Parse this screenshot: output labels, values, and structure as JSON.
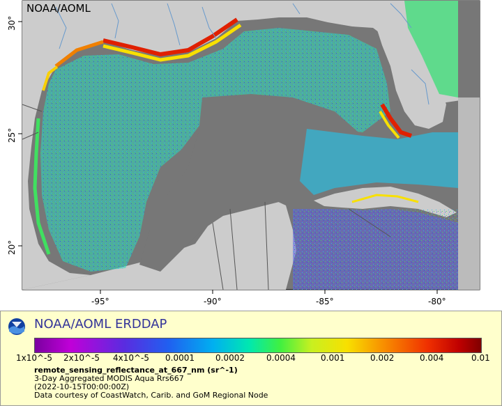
{
  "map": {
    "title": "NOAA/AOML",
    "lon_labels": [
      "-95°",
      "-90°",
      "-85°",
      "-80°"
    ],
    "lat_labels": [
      "30°",
      "25°",
      "20°"
    ],
    "colors": {
      "land": "#cccccc",
      "nodata": "#777777",
      "rivers": "#6699cc",
      "borders": "#555555"
    }
  },
  "legend": {
    "title": "NOAA/AOML ERDDAP",
    "colorbar_labels": [
      "1x10^-5",
      "2x10^-5",
      "4x10^-5",
      "0.0001",
      "0.0002",
      "0.0004",
      "0.001",
      "0.002",
      "0.004",
      "0.01"
    ],
    "variable": "remote_sensing_reflectance_at_667_nm (sr^-1)",
    "dataset": "3-Day Aggregated MODIS Aqua Rrs667",
    "time": "(2022-10-15T00:00:00Z)",
    "credit": "Data courtesy of CoastWatch, Carib. and GoM Regional Node"
  }
}
